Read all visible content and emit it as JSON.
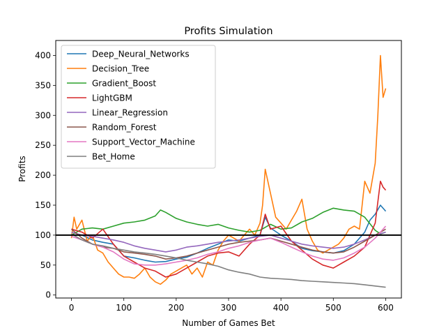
{
  "chart_data": {
    "type": "line",
    "title": "Profits Simulation",
    "xlabel": "Number of Games Bet",
    "ylabel": "Profits",
    "xlim": [
      -30,
      630
    ],
    "ylim": [
      -5,
      425
    ],
    "xticks": [
      0,
      100,
      200,
      300,
      400,
      500,
      600
    ],
    "yticks": [
      0,
      50,
      100,
      150,
      200,
      250,
      300,
      350,
      400
    ],
    "reference_line": 100,
    "legend_position": "upper-left",
    "series": [
      {
        "name": "Deep_Neural_Networks",
        "color": "#1f77b4",
        "x": [
          0,
          20,
          40,
          60,
          80,
          100,
          120,
          140,
          160,
          180,
          200,
          220,
          240,
          260,
          280,
          300,
          320,
          340,
          360,
          370,
          380,
          400,
          420,
          440,
          460,
          480,
          500,
          520,
          540,
          560,
          570,
          580,
          590,
          600
        ],
        "y": [
          100,
          100,
          92,
          88,
          85,
          65,
          62,
          58,
          55,
          56,
          60,
          63,
          70,
          78,
          85,
          92,
          90,
          95,
          100,
          130,
          112,
          100,
          90,
          78,
          74,
          72,
          70,
          74,
          85,
          105,
          125,
          135,
          150,
          140
        ]
      },
      {
        "name": "Decision_Tree",
        "color": "#ff7f0e",
        "x": [
          0,
          5,
          10,
          20,
          30,
          40,
          50,
          60,
          70,
          80,
          90,
          100,
          110,
          120,
          130,
          140,
          150,
          160,
          170,
          180,
          190,
          200,
          210,
          220,
          230,
          240,
          250,
          260,
          270,
          280,
          290,
          300,
          310,
          320,
          330,
          340,
          350,
          360,
          365,
          370,
          380,
          390,
          400,
          410,
          420,
          430,
          440,
          450,
          460,
          470,
          480,
          490,
          500,
          510,
          520,
          530,
          540,
          550,
          560,
          570,
          580,
          585,
          590,
          595,
          600
        ],
        "y": [
          95,
          130,
          110,
          125,
          90,
          100,
          75,
          70,
          55,
          45,
          35,
          30,
          30,
          28,
          35,
          45,
          30,
          22,
          18,
          25,
          35,
          40,
          45,
          50,
          35,
          45,
          30,
          55,
          50,
          75,
          90,
          100,
          95,
          90,
          100,
          110,
          100,
          120,
          150,
          210,
          170,
          130,
          120,
          110,
          125,
          140,
          160,
          110,
          90,
          75,
          70,
          75,
          80,
          85,
          95,
          110,
          115,
          110,
          190,
          170,
          220,
          300,
          400,
          330,
          345
        ]
      },
      {
        "name": "Gradient_Boost",
        "color": "#2ca02c",
        "x": [
          0,
          20,
          40,
          60,
          80,
          100,
          120,
          140,
          160,
          170,
          180,
          200,
          220,
          240,
          260,
          280,
          300,
          320,
          340,
          360,
          380,
          400,
          420,
          440,
          460,
          480,
          500,
          520,
          540,
          560,
          580,
          590,
          600
        ],
        "y": [
          100,
          110,
          112,
          110,
          115,
          120,
          122,
          125,
          132,
          142,
          138,
          128,
          122,
          118,
          115,
          118,
          112,
          108,
          105,
          108,
          118,
          110,
          112,
          122,
          128,
          138,
          145,
          142,
          140,
          130,
          108,
          102,
          105
        ]
      },
      {
        "name": "LightGBM",
        "color": "#d62728",
        "x": [
          0,
          20,
          40,
          60,
          80,
          100,
          120,
          140,
          160,
          180,
          200,
          220,
          240,
          260,
          280,
          300,
          320,
          340,
          360,
          370,
          380,
          400,
          420,
          440,
          460,
          480,
          500,
          520,
          540,
          560,
          580,
          590,
          595,
          600
        ],
        "y": [
          110,
          105,
          95,
          110,
          85,
          65,
          55,
          45,
          40,
          30,
          35,
          45,
          55,
          65,
          70,
          72,
          65,
          85,
          100,
          135,
          110,
          115,
          90,
          75,
          60,
          50,
          45,
          55,
          65,
          80,
          120,
          190,
          180,
          175
        ]
      },
      {
        "name": "Linear_Regression",
        "color": "#9467bd",
        "x": [
          0,
          20,
          40,
          60,
          80,
          100,
          120,
          140,
          160,
          180,
          200,
          220,
          240,
          260,
          280,
          300,
          320,
          340,
          360,
          380,
          400,
          420,
          440,
          460,
          480,
          500,
          520,
          540,
          560,
          580,
          600
        ],
        "y": [
          105,
          100,
          98,
          95,
          92,
          88,
          82,
          78,
          75,
          72,
          75,
          80,
          82,
          85,
          88,
          90,
          92,
          95,
          98,
          100,
          95,
          90,
          85,
          82,
          80,
          78,
          80,
          85,
          92,
          100,
          105
        ]
      },
      {
        "name": "Random_Forest",
        "color": "#8c564b",
        "x": [
          0,
          20,
          40,
          60,
          80,
          100,
          120,
          140,
          160,
          180,
          200,
          220,
          240,
          260,
          280,
          300,
          320,
          340,
          360,
          380,
          400,
          420,
          440,
          460,
          480,
          500,
          520,
          540,
          560,
          580,
          600
        ],
        "y": [
          110,
          95,
          85,
          80,
          78,
          72,
          70,
          68,
          65,
          60,
          62,
          65,
          70,
          75,
          80,
          85,
          88,
          90,
          92,
          95,
          90,
          85,
          80,
          75,
          72,
          70,
          72,
          80,
          90,
          100,
          110
        ]
      },
      {
        "name": "Support_Vector_Machine",
        "color": "#e377c2",
        "x": [
          0,
          20,
          40,
          60,
          80,
          100,
          120,
          140,
          160,
          180,
          200,
          220,
          240,
          260,
          280,
          300,
          320,
          340,
          360,
          380,
          400,
          420,
          440,
          460,
          480,
          500,
          520,
          540,
          560,
          580,
          600
        ],
        "y": [
          98,
          92,
          85,
          80,
          72,
          60,
          52,
          50,
          50,
          52,
          55,
          58,
          62,
          68,
          72,
          78,
          82,
          88,
          92,
          95,
          88,
          80,
          72,
          65,
          60,
          58,
          62,
          70,
          80,
          95,
          115
        ]
      },
      {
        "name": "Bet_Home",
        "color": "#7f7f7f",
        "x": [
          0,
          20,
          40,
          60,
          80,
          100,
          120,
          140,
          160,
          180,
          200,
          220,
          240,
          260,
          280,
          300,
          320,
          340,
          360,
          380,
          400,
          420,
          440,
          460,
          480,
          500,
          520,
          540,
          560,
          580,
          600
        ],
        "y": [
          102,
          92,
          85,
          82,
          78,
          75,
          72,
          70,
          68,
          65,
          62,
          58,
          55,
          52,
          48,
          42,
          38,
          35,
          30,
          28,
          27,
          26,
          24,
          23,
          22,
          21,
          20,
          19,
          17,
          15,
          13
        ]
      }
    ]
  }
}
